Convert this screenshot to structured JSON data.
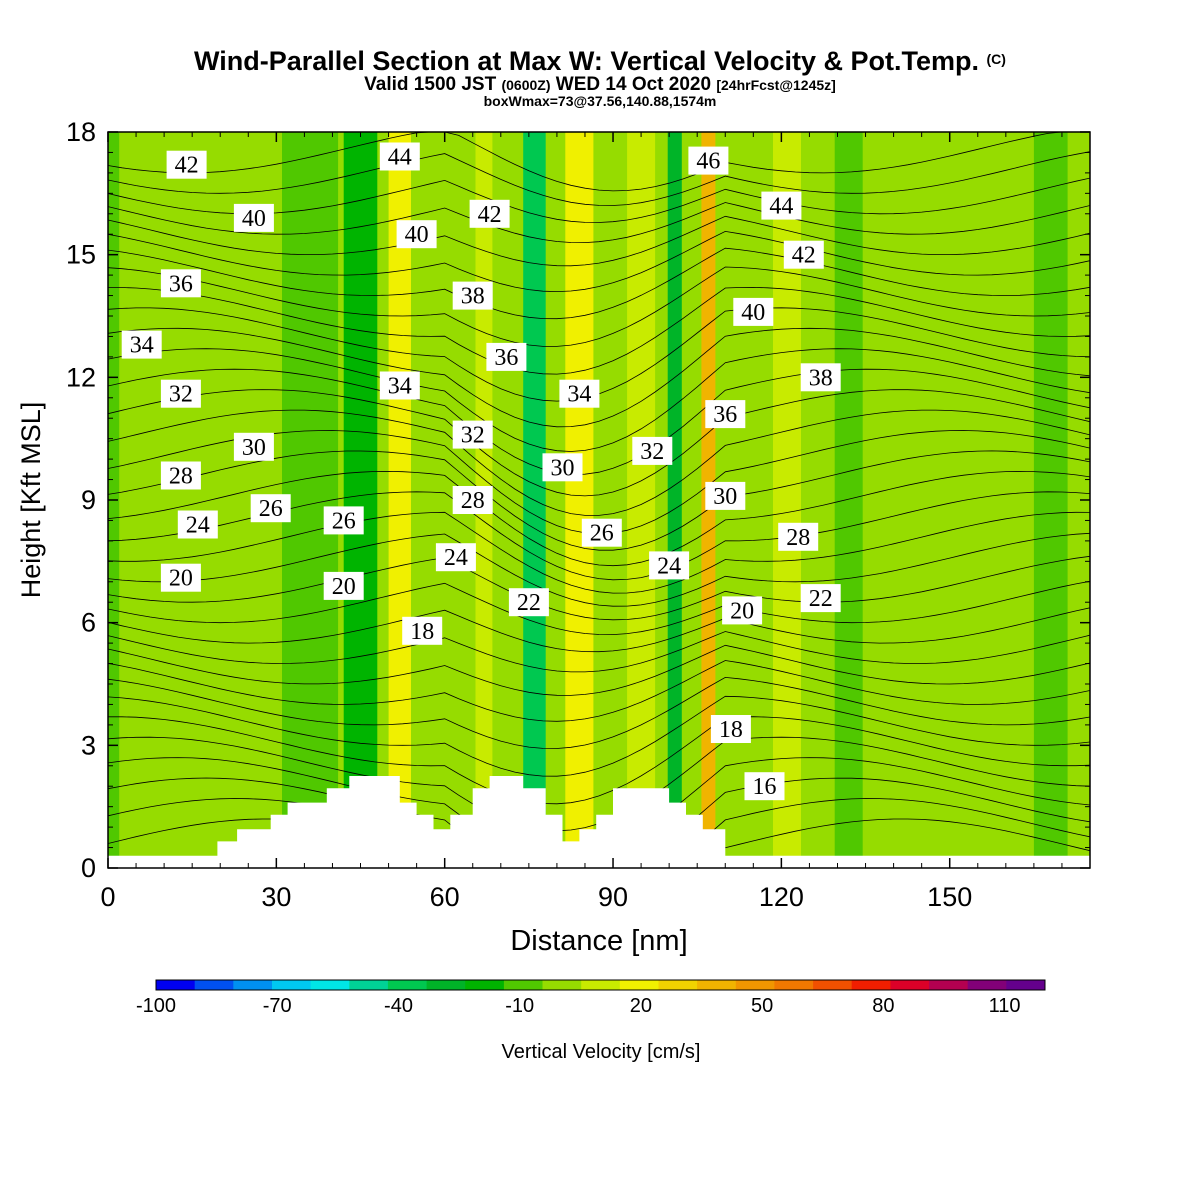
{
  "header": {
    "title": "Wind-Parallel Section at Max W: Vertical Velocity & Pot.Temp.",
    "copyright_mark": "(C)",
    "valid_prefix": "Valid 1500 JST",
    "valid_utc": "(0600Z)",
    "valid_date": "WED 14 Oct 2020",
    "forecast_info": "[24hrFcst@1245z]",
    "box_info": "boxWmax=73@37.56,140.88,1574m"
  },
  "chart_data": {
    "type": "heatmap",
    "xlabel": "Distance [nm]",
    "ylabel": "Height [Kft MSL]",
    "xlim": [
      0,
      175
    ],
    "ylim": [
      0,
      18
    ],
    "x_ticks": [
      0,
      30,
      60,
      90,
      120,
      150
    ],
    "y_ticks": [
      0,
      3,
      6,
      9,
      12,
      15,
      18
    ],
    "colorbar": {
      "label": "Vertical Velocity [cm/s]",
      "bin_edges": [
        -100,
        -90,
        -80,
        -70,
        -60,
        -50,
        -40,
        -30,
        -20,
        -10,
        0,
        10,
        20,
        30,
        40,
        50,
        60,
        70,
        80,
        90,
        100,
        110,
        120
      ],
      "tick_labels": [
        -100,
        -70,
        -40,
        -10,
        20,
        50,
        80,
        110
      ],
      "colors": [
        "#0000f0",
        "#0050f0",
        "#0090f0",
        "#00c8f0",
        "#00e6e6",
        "#00d296",
        "#00c850",
        "#00b428",
        "#00b400",
        "#50c800",
        "#96dc00",
        "#c8eb00",
        "#f0f000",
        "#f0d200",
        "#f0b400",
        "#f09600",
        "#f07800",
        "#f05000",
        "#f01e00",
        "#dc0028",
        "#b40050",
        "#820078",
        "#64008c"
      ]
    },
    "velocity_bands": [
      {
        "center_x": 2,
        "width": 12,
        "value": -5
      },
      {
        "center_x": 8,
        "width": 12,
        "value": 5
      },
      {
        "center_x": 24,
        "width": 14,
        "value": 5
      },
      {
        "center_x": 36,
        "width": 10,
        "value": -5
      },
      {
        "center_x": 45,
        "width": 6,
        "value": -15
      },
      {
        "center_x": 52,
        "width": 4,
        "value": 25
      },
      {
        "center_x": 60,
        "width": 6,
        "value": 5
      },
      {
        "center_x": 67,
        "width": 3,
        "value": 15
      },
      {
        "center_x": 76,
        "width": 4,
        "value": -35
      },
      {
        "center_x": 84,
        "width": 5,
        "value": 25
      },
      {
        "center_x": 95,
        "width": 5,
        "value": 15
      },
      {
        "center_x": 101,
        "width": 2.5,
        "value": -25
      },
      {
        "center_x": 107,
        "width": 2.5,
        "value": 45
      },
      {
        "center_x": 121,
        "width": 5,
        "value": 15
      },
      {
        "center_x": 132,
        "width": 5,
        "value": -5
      },
      {
        "center_x": 148,
        "width": 6,
        "value": 5
      },
      {
        "center_x": 168,
        "width": 6,
        "value": -5
      }
    ],
    "terrain": [
      [
        0,
        0.3
      ],
      [
        19.5,
        0.3
      ],
      [
        19.5,
        0.65
      ],
      [
        23,
        0.65
      ],
      [
        23,
        0.95
      ],
      [
        29,
        0.95
      ],
      [
        29,
        1.3
      ],
      [
        32,
        1.3
      ],
      [
        32,
        1.6
      ],
      [
        39,
        1.6
      ],
      [
        39,
        1.95
      ],
      [
        43,
        1.95
      ],
      [
        43,
        2.25
      ],
      [
        52,
        2.25
      ],
      [
        52,
        1.6
      ],
      [
        55,
        1.6
      ],
      [
        55,
        1.3
      ],
      [
        58,
        1.3
      ],
      [
        58,
        0.95
      ],
      [
        61,
        0.95
      ],
      [
        61,
        1.3
      ],
      [
        65,
        1.3
      ],
      [
        65,
        1.95
      ],
      [
        68,
        1.95
      ],
      [
        68,
        2.25
      ],
      [
        74,
        2.25
      ],
      [
        74,
        1.95
      ],
      [
        78,
        1.95
      ],
      [
        78,
        1.3
      ],
      [
        81,
        1.3
      ],
      [
        81,
        0.65
      ],
      [
        84,
        0.65
      ],
      [
        84,
        0.95
      ],
      [
        87,
        0.95
      ],
      [
        87,
        1.3
      ],
      [
        90,
        1.3
      ],
      [
        90,
        1.95
      ],
      [
        100,
        1.95
      ],
      [
        100,
        1.6
      ],
      [
        103,
        1.6
      ],
      [
        103,
        1.3
      ],
      [
        106,
        1.3
      ],
      [
        106,
        0.95
      ],
      [
        110,
        0.95
      ],
      [
        110,
        0.3
      ],
      [
        175,
        0.3
      ]
    ],
    "theta_contours": {
      "interval": 1,
      "levels_labeled": [
        {
          "value": 42,
          "x": 14,
          "y": 17.2
        },
        {
          "value": 40,
          "x": 26,
          "y": 15.9
        },
        {
          "value": 36,
          "x": 13,
          "y": 14.3
        },
        {
          "value": 34,
          "x": 6,
          "y": 12.8
        },
        {
          "value": 32,
          "x": 13,
          "y": 11.6
        },
        {
          "value": 30,
          "x": 26,
          "y": 10.3
        },
        {
          "value": 28,
          "x": 13,
          "y": 9.6
        },
        {
          "value": 26,
          "x": 29,
          "y": 8.8
        },
        {
          "value": 24,
          "x": 16,
          "y": 8.4
        },
        {
          "value": 20,
          "x": 13,
          "y": 7.1
        },
        {
          "value": 26,
          "x": 42,
          "y": 8.5
        },
        {
          "value": 20,
          "x": 42,
          "y": 6.9
        },
        {
          "value": 18,
          "x": 56,
          "y": 5.8
        },
        {
          "value": 44,
          "x": 52,
          "y": 17.4
        },
        {
          "value": 40,
          "x": 55,
          "y": 15.5
        },
        {
          "value": 34,
          "x": 52,
          "y": 11.8
        },
        {
          "value": 32,
          "x": 65,
          "y": 10.6
        },
        {
          "value": 28,
          "x": 65,
          "y": 9
        },
        {
          "value": 24,
          "x": 62,
          "y": 7.6
        },
        {
          "value": 22,
          "x": 75,
          "y": 6.5
        },
        {
          "value": 42,
          "x": 68,
          "y": 16
        },
        {
          "value": 38,
          "x": 65,
          "y": 14
        },
        {
          "value": 36,
          "x": 71,
          "y": 12.5
        },
        {
          "value": 34,
          "x": 84,
          "y": 11.6
        },
        {
          "value": 30,
          "x": 81,
          "y": 9.8
        },
        {
          "value": 26,
          "x": 88,
          "y": 8.2
        },
        {
          "value": 32,
          "x": 97,
          "y": 10.2
        },
        {
          "value": 24,
          "x": 100,
          "y": 7.4
        },
        {
          "value": 46,
          "x": 107,
          "y": 17.3
        },
        {
          "value": 44,
          "x": 120,
          "y": 16.2
        },
        {
          "value": 42,
          "x": 124,
          "y": 15
        },
        {
          "value": 40,
          "x": 115,
          "y": 13.6
        },
        {
          "value": 38,
          "x": 127,
          "y": 12
        },
        {
          "value": 36,
          "x": 110,
          "y": 11.1
        },
        {
          "value": 30,
          "x": 110,
          "y": 9.1
        },
        {
          "value": 28,
          "x": 123,
          "y": 8.1
        },
        {
          "value": 22,
          "x": 127,
          "y": 6.6
        },
        {
          "value": 20,
          "x": 113,
          "y": 6.3
        },
        {
          "value": 18,
          "x": 111,
          "y": 3.4
        },
        {
          "value": 16,
          "x": 117,
          "y": 2
        }
      ]
    }
  }
}
